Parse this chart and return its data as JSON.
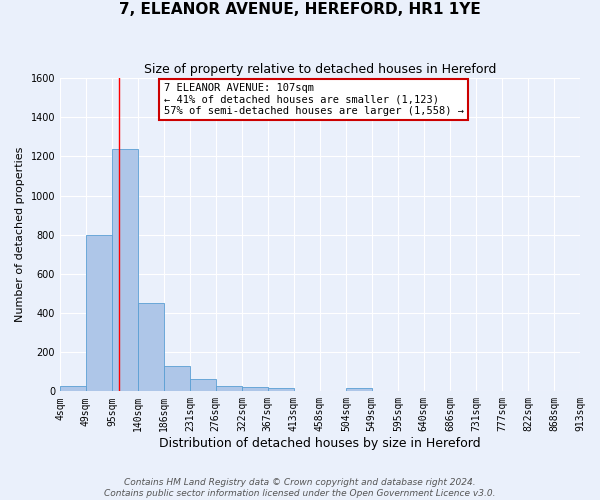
{
  "title": "7, ELEANOR AVENUE, HEREFORD, HR1 1YE",
  "subtitle": "Size of property relative to detached houses in Hereford",
  "xlabel": "Distribution of detached houses by size in Hereford",
  "ylabel": "Number of detached properties",
  "bar_edges": [
    4,
    49,
    95,
    140,
    186,
    231,
    276,
    322,
    367,
    413,
    458,
    504,
    549,
    595,
    640,
    686,
    731,
    777,
    822,
    868,
    913
  ],
  "bar_heights": [
    25,
    800,
    1240,
    450,
    130,
    65,
    25,
    20,
    15,
    0,
    0,
    15,
    0,
    0,
    0,
    0,
    0,
    0,
    0,
    0
  ],
  "bar_color": "#aec6e8",
  "bar_edgecolor": "#5a9fd4",
  "background_color": "#eaf0fb",
  "grid_color": "#ffffff",
  "red_line_x": 107,
  "annotation_text": "7 ELEANOR AVENUE: 107sqm\n← 41% of detached houses are smaller (1,123)\n57% of semi-detached houses are larger (1,558) →",
  "annotation_box_facecolor": "#ffffff",
  "annotation_box_edgecolor": "#cc0000",
  "ylim": [
    0,
    1600
  ],
  "yticks": [
    0,
    200,
    400,
    600,
    800,
    1000,
    1200,
    1400,
    1600
  ],
  "tick_labels": [
    "4sqm",
    "49sqm",
    "95sqm",
    "140sqm",
    "186sqm",
    "231sqm",
    "276sqm",
    "322sqm",
    "367sqm",
    "413sqm",
    "458sqm",
    "504sqm",
    "549sqm",
    "595sqm",
    "640sqm",
    "686sqm",
    "731sqm",
    "777sqm",
    "822sqm",
    "868sqm",
    "913sqm"
  ],
  "footer_text": "Contains HM Land Registry data © Crown copyright and database right 2024.\nContains public sector information licensed under the Open Government Licence v3.0.",
  "title_fontsize": 11,
  "subtitle_fontsize": 9,
  "xlabel_fontsize": 9,
  "ylabel_fontsize": 8,
  "tick_fontsize": 7,
  "annotation_fontsize": 7.5,
  "footer_fontsize": 6.5
}
